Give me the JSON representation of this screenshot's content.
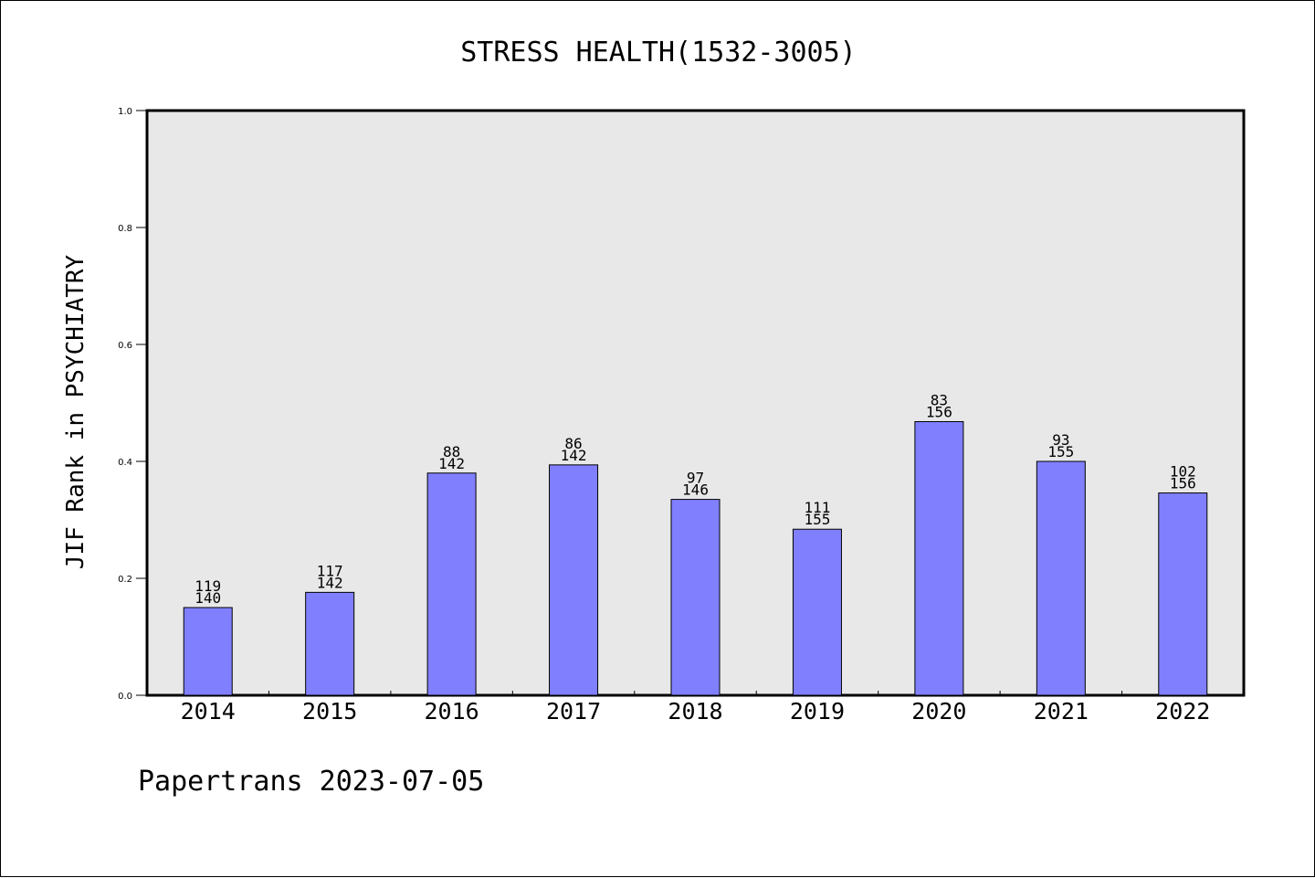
{
  "chart_data": {
    "type": "bar",
    "title": "STRESS HEALTH(1532-3005)",
    "xlabel": "",
    "ylabel": "JIF Rank in PSYCHIATRY",
    "ylim": [
      0,
      1.0
    ],
    "yticks": [
      "0.0",
      "0.2",
      "0.4",
      "0.6",
      "0.8",
      "1.0"
    ],
    "grid": false,
    "categories": [
      "2014",
      "2015",
      "2016",
      "2017",
      "2018",
      "2019",
      "2020",
      "2021",
      "2022"
    ],
    "values": [
      0.15,
      0.176,
      0.38,
      0.394,
      0.335,
      0.284,
      0.468,
      0.4,
      0.346
    ],
    "rank": [
      "119",
      "117",
      "88",
      "86",
      "97",
      "111",
      "83",
      "93",
      "102"
    ],
    "total": [
      "140",
      "142",
      "142",
      "142",
      "146",
      "155",
      "156",
      "155",
      "156"
    ],
    "colors": {
      "bar": "#8080ff",
      "plot_background": "#e8e8e8"
    }
  },
  "footer": "Papertrans 2023-07-05"
}
